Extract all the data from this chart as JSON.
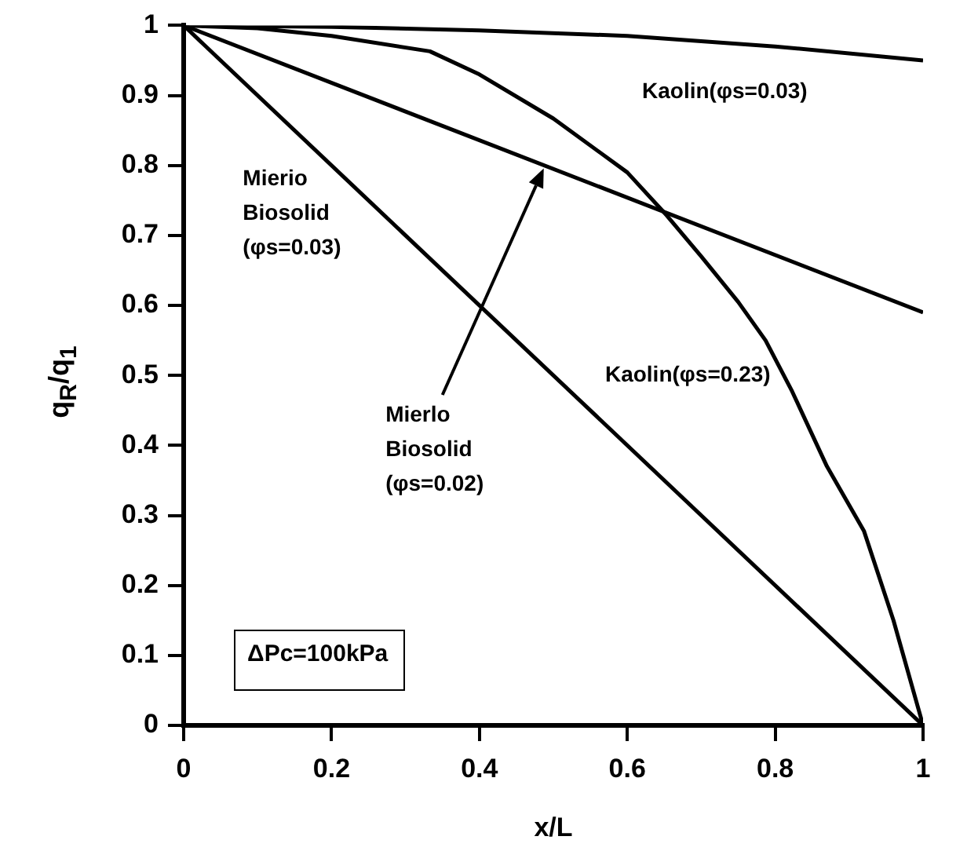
{
  "chart_data": {
    "type": "line",
    "xlabel": "x/L",
    "ylabel": "q$_{R}$/q$_{1}$",
    "xlim": [
      0,
      1
    ],
    "ylim": [
      0,
      1
    ],
    "xticks": [
      0,
      0.2,
      0.4,
      0.6,
      0.8,
      1
    ],
    "yticks": [
      0,
      0.1,
      0.2,
      0.3,
      0.4,
      0.5,
      0.6,
      0.7,
      0.8,
      0.9,
      1
    ],
    "grid": false,
    "legend": false,
    "marker": "none",
    "line_style": "solid",
    "series": [
      {
        "name": "Kaolin(φs=0.03)",
        "color": "#000000",
        "x": [
          0,
          0.2,
          0.4,
          0.6,
          0.8,
          1
        ],
        "values": [
          1,
          0.998,
          0.993,
          0.985,
          0.97,
          0.95
        ]
      },
      {
        "name": "Kaolin(φs=0.23)",
        "color": "#000000",
        "x": [
          0,
          0.1,
          0.2,
          0.333,
          0.4,
          0.5,
          0.6,
          0.653,
          0.7,
          0.75,
          0.787,
          0.823,
          0.87,
          0.92,
          0.96,
          1
        ],
        "values": [
          1,
          0.996,
          0.985,
          0.963,
          0.93,
          0.867,
          0.79,
          0.729,
          0.67,
          0.605,
          0.55,
          0.477,
          0.37,
          0.278,
          0.15,
          0
        ]
      },
      {
        "name": "Mierlo Biosolid (φs=0.02)",
        "color": "#000000",
        "x": [
          0,
          1
        ],
        "values": [
          1,
          0.59
        ]
      },
      {
        "name": "Mierio Biosolid (φs=0.03)",
        "color": "#000000",
        "x": [
          0,
          1
        ],
        "values": [
          1,
          0
        ]
      }
    ],
    "annotations": [
      "ΔPc=100kPa"
    ]
  }
}
